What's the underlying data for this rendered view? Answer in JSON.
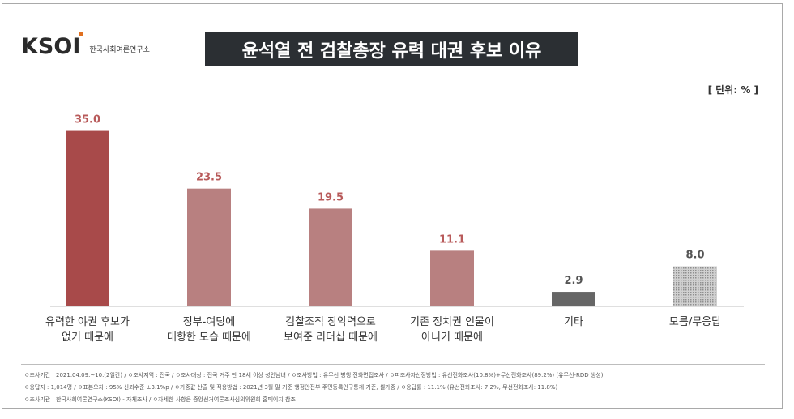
{
  "logo": {
    "mark": "KSOI",
    "subtitle": "한국사회여론연구소"
  },
  "title": "윤석열 전 검찰총장 유력 대권 후보 이유",
  "unit": "[ 단위: % ]",
  "colors": {
    "bar_main": "#a84a4a",
    "bar_light": "#b88080",
    "bar_other": "#666666",
    "bar_unknown": "#bbbbbb",
    "label_text": "#b85a5a",
    "title_bg": "#2b2f33"
  },
  "chart_data": {
    "type": "bar",
    "categories": [
      [
        "유력한 야권 후보가",
        "없기 때문에"
      ],
      [
        "정부-여당에",
        "대항한 모습 때문에"
      ],
      [
        "검찰조직 장악력으로",
        "보여준 리더십 때문에"
      ],
      [
        "기존 정치권 인물이",
        "아니기 때문에"
      ],
      [
        "기타"
      ],
      [
        "모름/무응답"
      ]
    ],
    "values": [
      35.0,
      23.5,
      19.5,
      11.1,
      2.9,
      8.0
    ],
    "value_labels": [
      "35.0",
      "23.5",
      "19.5",
      "11.1",
      "2.9",
      "8.0"
    ],
    "ylim": [
      0,
      38
    ],
    "grid": false,
    "title": "윤석열 전 검찰총장 유력 대권 후보 이유"
  },
  "notes": [
    "ㅇ조사기간 : 2021.04.09.~10.(2일간)  /  ㅇ조사지역 : 전국  /  ㅇ조사대상 : 전국 거주 만 18세 이상 성인남녀  /  ㅇ조사방법 : 유무선 병행 전화면접조사  /  ㅇ피조사자선정방법 : 유선전화조사(10.8%)+무선전화조사(89.2%) (유무선-RDD 생성)",
    "ㅇ응답자 : 1,014명  /  ㅇ표본오차 : 95% 신뢰수준 ±3.1%p  /  ㅇ가중값 산출 및 적용방법 : 2021년 3월 말 기준 행정안전부 주민등록인구통계 기준, 셀가중  /  ㅇ응답률 : 11.1% (유선전화조사: 7.2%, 무선전화조사: 11.8%)",
    "ㅇ조사기관 : 한국사회여론연구소(KSOI) - 자체조사  /  ㅇ자세한 사항은 중앙선거여론조사심의위원회 홈페이지 참조"
  ]
}
